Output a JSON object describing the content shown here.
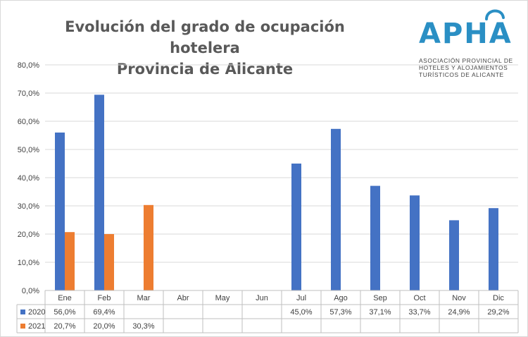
{
  "chart_data": {
    "type": "bar",
    "title": [
      "Evolución del grado de ocupación hotelera",
      "Provincia de Alicante"
    ],
    "categories": [
      "Ene",
      "Feb",
      "Mar",
      "Abr",
      "May",
      "Jun",
      "Jul",
      "Ago",
      "Sep",
      "Oct",
      "Nov",
      "Dic"
    ],
    "series": [
      {
        "name": "2020",
        "color": "#4472c4",
        "values": [
          56.0,
          69.4,
          null,
          null,
          null,
          null,
          45.0,
          57.3,
          37.1,
          33.7,
          24.9,
          29.2
        ],
        "labels": [
          "56,0%",
          "69,4%",
          "",
          "",
          "",
          "",
          "45,0%",
          "57,3%",
          "37,1%",
          "33,7%",
          "24,9%",
          "29,2%"
        ]
      },
      {
        "name": "2021",
        "color": "#ed7d31",
        "values": [
          20.7,
          20.0,
          30.3,
          null,
          null,
          null,
          null,
          null,
          null,
          null,
          null,
          null
        ],
        "labels": [
          "20,7%",
          "20,0%",
          "30,3%",
          "",
          "",
          "",
          "",
          "",
          "",
          "",
          "",
          ""
        ]
      }
    ],
    "ylim": [
      0,
      80
    ],
    "yticks": [
      {
        "value": 0,
        "label": "0,0%"
      },
      {
        "value": 10,
        "label": "10,0%"
      },
      {
        "value": 20,
        "label": "20,0%"
      },
      {
        "value": 30,
        "label": "30,0%"
      },
      {
        "value": 40,
        "label": "40,0%"
      },
      {
        "value": 50,
        "label": "50,0%"
      },
      {
        "value": 60,
        "label": "60,0%"
      },
      {
        "value": 70,
        "label": "70,0%"
      },
      {
        "value": 80,
        "label": "80,0%"
      }
    ],
    "grid": true,
    "legend": "data-table"
  },
  "logo": {
    "letters": "APHA",
    "subtitle": [
      "ASOCIACIÓN PROVINCIAL DE",
      "HOTELES Y ALOJAMIENTOS",
      "TURÍSTICOS DE ALICANTE"
    ],
    "color": "#2a8fc4"
  }
}
